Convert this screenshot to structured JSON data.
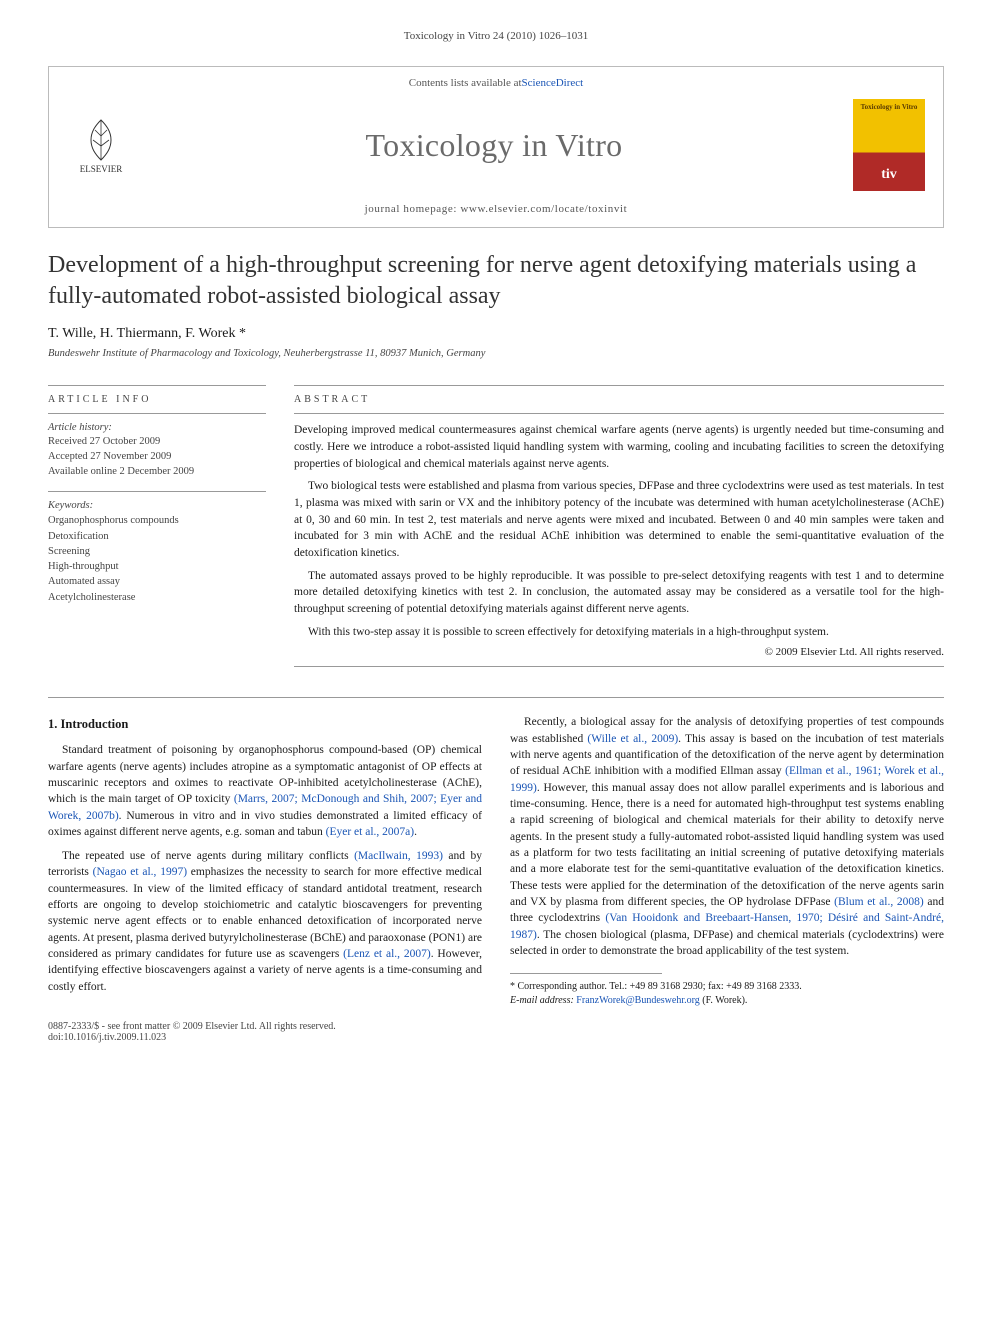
{
  "running_head": "Toxicology in Vitro 24 (2010) 1026–1031",
  "header": {
    "contents_line_prefix": "Contents lists available at ",
    "contents_link": "ScienceDirect",
    "journal": "Toxicology in Vitro",
    "homepage_prefix": "journal homepage: ",
    "homepage": "www.elsevier.com/locate/toxinvit",
    "publisher": "ELSEVIER",
    "cover_title": "Toxicology in Vitro",
    "cover_code": "tiv"
  },
  "article": {
    "title": "Development of a high-throughput screening for nerve agent detoxifying materials using a fully-automated robot-assisted biological assay",
    "authors": "T. Wille, H. Thiermann, F. Worek *",
    "affiliation": "Bundeswehr Institute of Pharmacology and Toxicology, Neuherbergstrasse 11, 80937 Munich, Germany"
  },
  "info": {
    "heading": "ARTICLE INFO",
    "history_label": "Article history:",
    "received": "Received 27 October 2009",
    "accepted": "Accepted 27 November 2009",
    "online": "Available online 2 December 2009",
    "keywords_label": "Keywords:",
    "keywords": [
      "Organophosphorus compounds",
      "Detoxification",
      "Screening",
      "High-throughput",
      "Automated assay",
      "Acetylcholinesterase"
    ]
  },
  "abstract": {
    "heading": "ABSTRACT",
    "p1": "Developing improved medical countermeasures against chemical warfare agents (nerve agents) is urgently needed but time-consuming and costly. Here we introduce a robot-assisted liquid handling system with warming, cooling and incubating facilities to screen the detoxifying properties of biological and chemical materials against nerve agents.",
    "p2": "Two biological tests were established and plasma from various species, DFPase and three cyclodextrins were used as test materials. In test 1, plasma was mixed with sarin or VX and the inhibitory potency of the incubate was determined with human acetylcholinesterase (AChE) at 0, 30 and 60 min. In test 2, test materials and nerve agents were mixed and incubated. Between 0 and 40 min samples were taken and incubated for 3 min with AChE and the residual AChE inhibition was determined to enable the semi-quantitative evaluation of the detoxification kinetics.",
    "p3": "The automated assays proved to be highly reproducible. It was possible to pre-select detoxifying reagents with test 1 and to determine more detailed detoxifying kinetics with test 2. In conclusion, the automated assay may be considered as a versatile tool for the high-throughput screening of potential detoxifying materials against different nerve agents.",
    "p4": "With this two-step assay it is possible to screen effectively for detoxifying materials in a high-throughput system.",
    "copyright": "© 2009 Elsevier Ltd. All rights reserved."
  },
  "body": {
    "h1": "1. Introduction",
    "p1a": "Standard treatment of poisoning by organophosphorus compound-based (OP) chemical warfare agents (nerve agents) includes atropine as a symptomatic antagonist of OP effects at muscarinic receptors and oximes to reactivate OP-inhibited acetylcholinesterase (AChE), which is the main target of OP toxicity ",
    "p1c1": "(Marrs, 2007; McDonough and Shih, 2007; Eyer and Worek, 2007b)",
    "p1b": ". Numerous in vitro and in vivo studies demonstrated a limited efficacy of oximes against different nerve agents, e.g. soman and tabun ",
    "p1c2": "(Eyer et al., 2007a)",
    "p1end": ".",
    "p2a": "The repeated use of nerve agents during military conflicts ",
    "p2c1": "(MacIlwain, 1993)",
    "p2b": " and by terrorists ",
    "p2c2": "(Nagao et al., 1997)",
    "p2c": " emphasizes the necessity to search for more effective medical countermeasures. In view of the limited efficacy of standard antidotal treatment, research efforts are ongoing to develop stoichiometric and catalytic bioscavengers for preventing systemic nerve agent effects or to enable enhanced detoxification of incorporated nerve agents. At present, plasma derived butyrylcholinesterase (BChE) and paraoxonase (PON1) are considered as primary candidates for future use as scavengers ",
    "p2c3": "(Lenz et al., 2007)",
    "p2d": ". However, identifying effective bioscavengers against a variety of nerve agents is a time-consuming and costly effort.",
    "p3a": "Recently, a biological assay for the analysis of detoxifying properties of test compounds was established ",
    "p3c1": "(Wille et al., 2009)",
    "p3b": ". This assay is based on the incubation of test materials with nerve agents and quantification of the detoxification of the nerve agent by determination of residual AChE inhibition with a modified Ellman assay ",
    "p3c2": "(Ellman et al., 1961; Worek et al., 1999)",
    "p3c": ". However, this manual assay does not allow parallel experiments and is laborious and time-consuming. Hence, there is a need for automated high-throughput test systems enabling a rapid screening of biological and chemical materials for their ability to detoxify nerve agents. In the present study a fully-automated robot-assisted liquid handling system was used as a platform for two tests facilitating an initial screening of putative detoxifying materials and a more elaborate test for the semi-quantitative evaluation of the detoxification kinetics. These tests were applied for the determination of the detoxification of the nerve agents sarin and VX by plasma from different species, the OP hydrolase DFPase ",
    "p3c3": "(Blum et al., 2008)",
    "p3d": " and three cyclodextrins ",
    "p3c4": "(Van Hooidonk and Breebaart-Hansen, 1970; Désiré and Saint-André, 1987)",
    "p3e": ". The chosen biological (plasma, DFPase) and chemical materials (cyclodextrins) were selected in order to demonstrate the broad applicability of the test system."
  },
  "footnote": {
    "corr": "* Corresponding author. Tel.: +49 89 3168 2930; fax: +49 89 3168 2333.",
    "email_label": "E-mail address:",
    "email": "FranzWorek@Bundeswehr.org",
    "email_name": " (F. Worek)."
  },
  "footer": {
    "left1": "0887-2333/$ - see front matter © 2009 Elsevier Ltd. All rights reserved.",
    "left2": "doi:10.1016/j.tiv.2009.11.023"
  },
  "colors": {
    "link": "#1a55b5",
    "rule": "#999999",
    "muted": "#444444",
    "cover_top": "#f2c100",
    "cover_bot": "#b02a27"
  }
}
